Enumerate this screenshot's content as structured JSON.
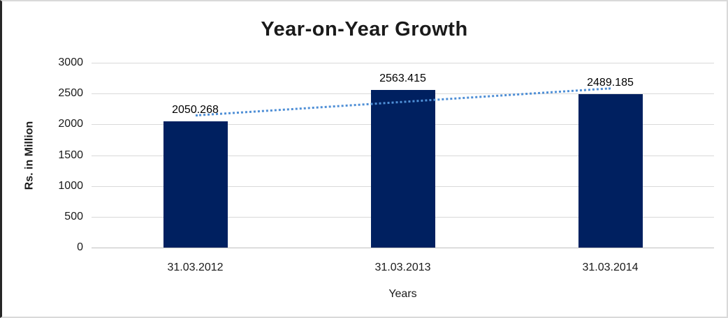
{
  "chart_data": {
    "type": "bar",
    "title": "Year-on-Year Growth",
    "categories": [
      "31.03.2012",
      "31.03.2013",
      "31.03.2014"
    ],
    "values": [
      2050.268,
      2563.415,
      2489.185
    ],
    "value_labels": [
      "2050.268",
      "2563.415",
      "2489.185"
    ],
    "xlabel": "Years",
    "ylabel": "Rs. in Million",
    "ylim": [
      0,
      3000
    ],
    "yticks": [
      0,
      500,
      1000,
      1500,
      2000,
      2500,
      3000
    ],
    "grid": true,
    "legend": false,
    "bar_color": "#002060",
    "gridline_color": "#d9d9d9",
    "axis_line_color": "#bfbfbf",
    "trendline": {
      "type": "linear",
      "style": "dotted",
      "color": "#4f8fd6",
      "start_value": 2148,
      "end_value": 2587
    }
  }
}
